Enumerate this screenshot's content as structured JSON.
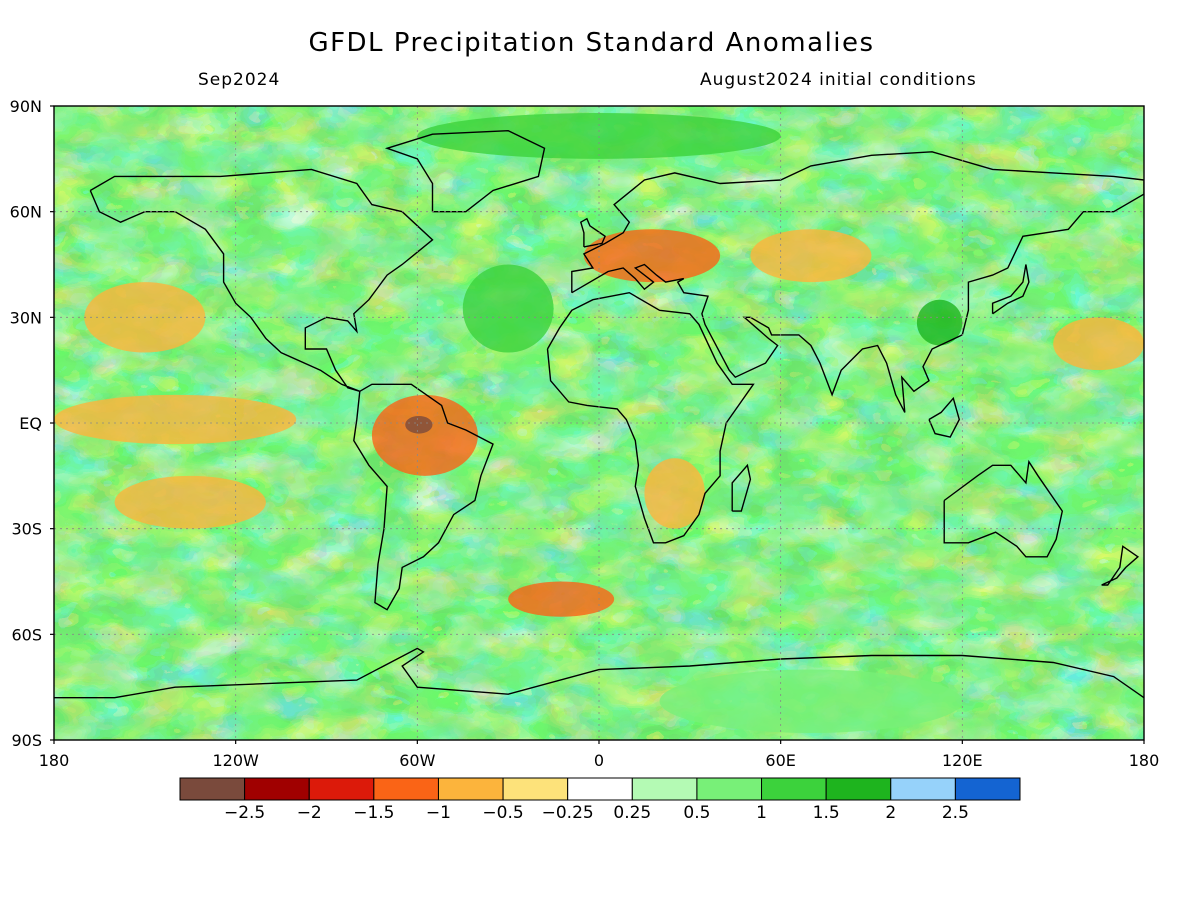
{
  "header": {
    "title": "GFDL Precipitation Standard Anomalies",
    "left_label": "Sep2024",
    "right_label": "August2024 initial conditions"
  },
  "map": {
    "lat_labels": [
      "90N",
      "60N",
      "30N",
      "EQ",
      "30S",
      "60S",
      "90S"
    ],
    "lon_labels": [
      "180",
      "120W",
      "60W",
      "0",
      "60E",
      "120E",
      "180"
    ],
    "lat_values": [
      90,
      60,
      30,
      0,
      -30,
      -60,
      -90
    ],
    "lon_values": [
      -180,
      -120,
      -60,
      0,
      60,
      120,
      180
    ],
    "lat_range": [
      -90,
      90
    ],
    "lon_range": [
      -180,
      180
    ],
    "gridlines": "dashed at 30°"
  },
  "colorbar": {
    "labels": [
      "−2.5",
      "−2",
      "−1.5",
      "−1",
      "−0.5",
      "−0.25",
      "0.25",
      "0.5",
      "1",
      "1.5",
      "2",
      "2.5"
    ],
    "bins": [
      {
        "color": "#7a4a3c"
      },
      {
        "color": "#a00000"
      },
      {
        "color": "#dc1a0a"
      },
      {
        "color": "#fa6416"
      },
      {
        "color": "#fcb43c"
      },
      {
        "color": "#fde27a"
      },
      {
        "color": "#ffffff"
      },
      {
        "color": "#b4fab4"
      },
      {
        "color": "#78f078"
      },
      {
        "color": "#3cd23c"
      },
      {
        "color": "#1eb41e"
      },
      {
        "color": "#96d2fa"
      },
      {
        "color": "#1464d2"
      }
    ]
  },
  "regions": [
    {
      "label": "equatorial-pacific-dry",
      "lon": [
        -180,
        -100
      ],
      "lat": [
        -6,
        8
      ],
      "value": -0.7
    },
    {
      "label": "amazon-dry",
      "lon": [
        -75,
        -40
      ],
      "lat": [
        -15,
        8
      ],
      "value": -1.4
    },
    {
      "label": "amazon-core-dry",
      "lon": [
        -64,
        -55
      ],
      "lat": [
        -3,
        2
      ],
      "value": -2.6
    },
    {
      "label": "europe-dry",
      "lon": [
        -5,
        40
      ],
      "lat": [
        40,
        55
      ],
      "value": -1.3
    },
    {
      "label": "central-asia-dry",
      "lon": [
        50,
        90
      ],
      "lat": [
        40,
        55
      ],
      "value": -0.8
    },
    {
      "label": "southern-africa-dry",
      "lon": [
        15,
        35
      ],
      "lat": [
        -30,
        -10
      ],
      "value": -0.9
    },
    {
      "label": "south-atlantic-dry",
      "lon": [
        -30,
        5
      ],
      "lat": [
        -55,
        -45
      ],
      "value": -1.4
    },
    {
      "label": "north-pacific-dry",
      "lon": [
        -170,
        -130
      ],
      "lat": [
        20,
        40
      ],
      "value": -0.6
    },
    {
      "label": "north-atlantic-wet",
      "lon": [
        -45,
        -15
      ],
      "lat": [
        20,
        45
      ],
      "value": 1.1
    },
    {
      "label": "south-china-wet",
      "lon": [
        105,
        120
      ],
      "lat": [
        22,
        35
      ],
      "value": 1.6
    },
    {
      "label": "arctic-wet",
      "lon": [
        -60,
        60
      ],
      "lat": [
        75,
        88
      ],
      "value": 1.3
    },
    {
      "label": "antarctic-wet",
      "lon": [
        20,
        120
      ],
      "lat": [
        -88,
        -70
      ],
      "value": 0.9
    },
    {
      "label": "western-pacific-dry",
      "lon": [
        150,
        180
      ],
      "lat": [
        15,
        30
      ],
      "value": -0.8
    },
    {
      "label": "east-pacific-dry-band",
      "lon": [
        -160,
        -110
      ],
      "lat": [
        -30,
        -15
      ],
      "value": -0.6
    }
  ]
}
